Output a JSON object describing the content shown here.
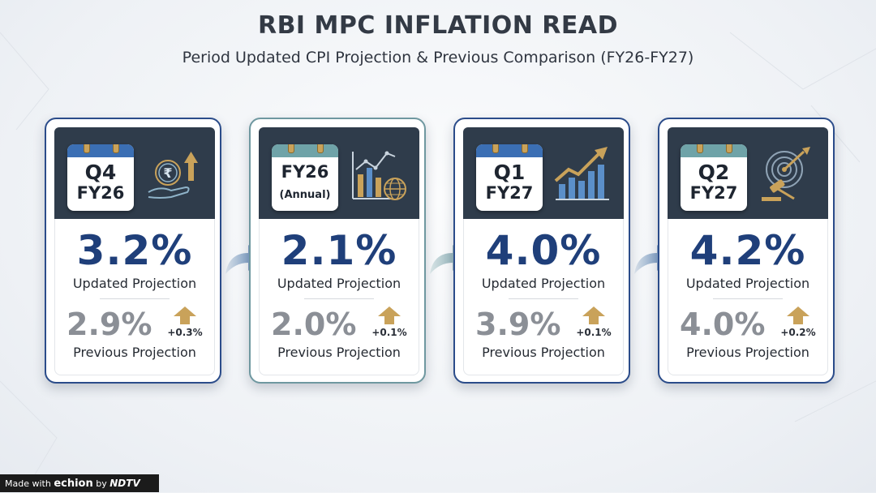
{
  "title": "RBI MPC INFLATION READ",
  "subtitle": "Period Updated CPI Projection & Previous Comparison (FY26-FY27)",
  "colors": {
    "primary_blue": "#1f3f7a",
    "teal_border": "#6f98a0",
    "header_dark": "#2f3c4b",
    "up_arrow_gold": "#c9a25a",
    "previous_gray": "#8b8f96"
  },
  "cards": [
    {
      "period_line1": "Q4",
      "period_line2": "FY26",
      "icon": "rupee-hand-growth-icon",
      "updated": "3.2%",
      "updated_label": "Updated Projection",
      "previous": "2.9%",
      "previous_label": "Previous Projection",
      "delta": "+0.3%"
    },
    {
      "period_line1": "FY26",
      "period_line2": "(Annual)",
      "icon": "bar-chart-globe-icon",
      "updated": "2.1%",
      "updated_label": "Updated Projection",
      "previous": "2.0%",
      "previous_label": "Previous Projection",
      "delta": "+0.1%"
    },
    {
      "period_line1": "Q1",
      "period_line2": "FY27",
      "icon": "rising-bar-chart-icon",
      "updated": "4.0%",
      "updated_label": "Updated Projection",
      "previous": "3.9%",
      "previous_label": "Previous Projection",
      "delta": "+0.1%"
    },
    {
      "period_line1": "Q2",
      "period_line2": "FY27",
      "icon": "target-gavel-icon",
      "updated": "4.2%",
      "updated_label": "Updated Projection",
      "previous": "4.0%",
      "previous_label": "Previous Projection",
      "delta": "+0.2%"
    }
  ],
  "chart_data": {
    "type": "table",
    "title": "RBI MPC INFLATION READ",
    "subtitle": "Period Updated CPI Projection & Previous Comparison (FY26-FY27)",
    "categories": [
      "Q4 FY26",
      "FY26 (Annual)",
      "Q1 FY27",
      "Q2 FY27"
    ],
    "series": [
      {
        "name": "Updated Projection",
        "values": [
          3.2,
          2.1,
          4.0,
          4.2
        ]
      },
      {
        "name": "Previous Projection",
        "values": [
          2.9,
          2.0,
          3.9,
          4.0
        ]
      }
    ],
    "change": [
      0.3,
      0.1,
      0.1,
      0.2
    ]
  },
  "footer": {
    "prefix": "Made with",
    "brand": "echion",
    "by": "by",
    "partner": "NDTV"
  }
}
